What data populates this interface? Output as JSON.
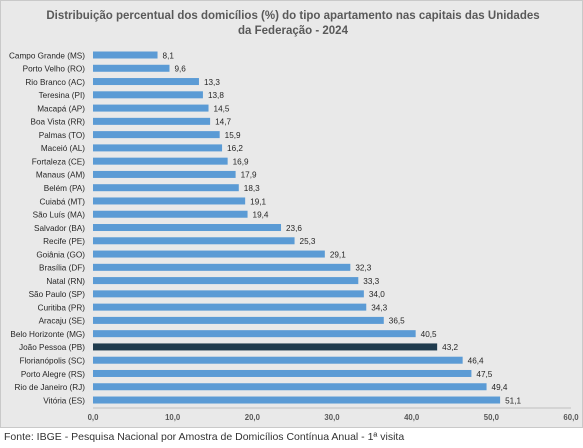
{
  "chart_data": {
    "type": "bar",
    "orientation": "horizontal",
    "title_line1": "Distribuição percentual dos domicílios (%) do tipo apartamento nas capitais das Unidades",
    "title_line2": "da Federação - 2024",
    "xlabel": "",
    "ylabel": "",
    "xlim": [
      0,
      60
    ],
    "x_ticks": [
      "0,0",
      "10,0",
      "20,0",
      "30,0",
      "40,0",
      "50,0",
      "60,0"
    ],
    "grid": false,
    "legend": "none",
    "categories": [
      "Campo Grande (MS)",
      "Porto Velho (RO)",
      "Rio Branco (AC)",
      "Teresina (PI)",
      "Macapá (AP)",
      "Boa Vista (RR)",
      "Palmas (TO)",
      "Maceió (AL)",
      "Fortaleza (CE)",
      "Manaus (AM)",
      "Belém (PA)",
      "Cuiabá (MT)",
      "São Luís (MA)",
      "Salvador (BA)",
      "Recife (PE)",
      "Goiânia (GO)",
      "Brasília (DF)",
      "Natal (RN)",
      "São Paulo (SP)",
      "Curitiba (PR)",
      "Aracaju (SE)",
      "Belo Horizonte (MG)",
      "João Pessoa (PB)",
      "Florianópolis (SC)",
      "Porto Alegre (RS)",
      "Rio de Janeiro (RJ)",
      "Vitória (ES)"
    ],
    "values": [
      8.1,
      9.6,
      13.3,
      13.8,
      14.5,
      14.7,
      15.9,
      16.2,
      16.9,
      17.9,
      18.3,
      19.1,
      19.4,
      23.6,
      25.3,
      29.1,
      32.3,
      33.3,
      34.0,
      34.3,
      36.5,
      40.5,
      43.2,
      46.4,
      47.5,
      49.4,
      51.1
    ],
    "value_labels": [
      "8,1",
      "9,6",
      "13,3",
      "13,8",
      "14,5",
      "14,7",
      "15,9",
      "16,2",
      "16,9",
      "17,9",
      "18,3",
      "19,1",
      "19,4",
      "23,6",
      "25,3",
      "29,1",
      "32,3",
      "33,3",
      "34,0",
      "34,3",
      "36,5",
      "40,5",
      "43,2",
      "46,4",
      "47,5",
      "49,4",
      "51,1"
    ],
    "highlight_category": "João Pessoa (PB)",
    "colors": {
      "bar": "#5b9bd5",
      "highlight": "#1f3b4d",
      "background": "#e9e9e9"
    }
  },
  "footer": {
    "source": "Fonte: IBGE - Pesquisa Nacional por Amostra de Domicílios Contínua Anual - 1ª visita"
  }
}
